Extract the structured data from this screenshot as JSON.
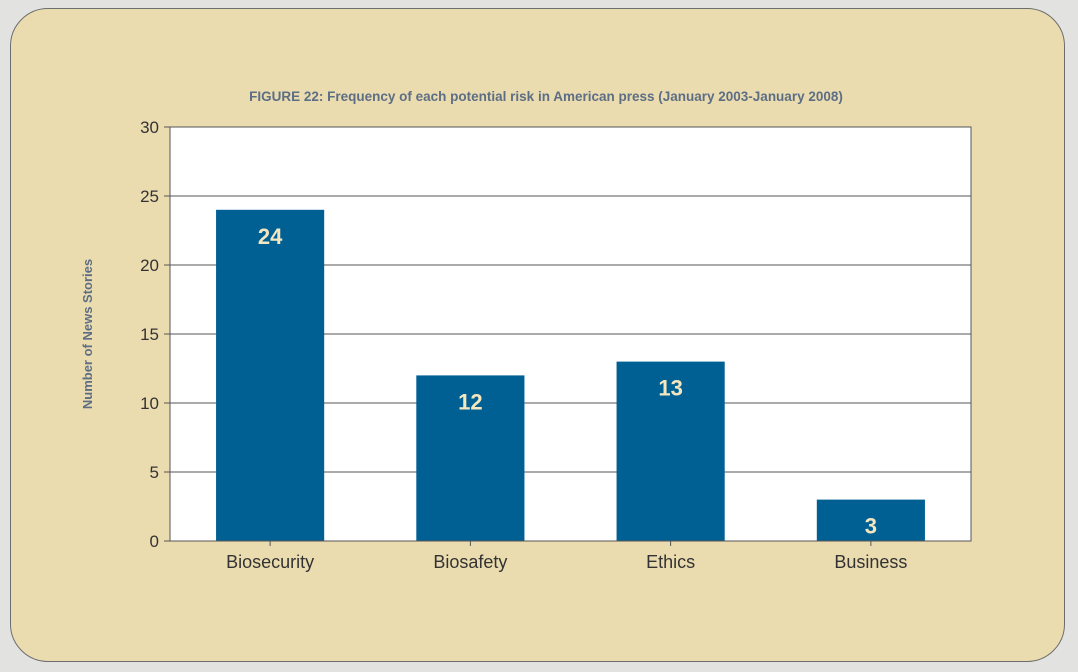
{
  "chart_data": {
    "type": "bar",
    "title": "FIGURE 22: Frequency of each potential risk in American press (January 2003-January 2008)",
    "xlabel": "",
    "ylabel": "Number of News Stories",
    "categories": [
      "Biosecurity",
      "Biosafety",
      "Ethics",
      "Business"
    ],
    "values": [
      24,
      12,
      13,
      3
    ],
    "data_labels": [
      "24",
      "12",
      "13",
      "3"
    ],
    "ylim": [
      0,
      30
    ],
    "yticks": [
      0,
      5,
      10,
      15,
      20,
      25,
      30
    ],
    "grid": true,
    "legend": "none",
    "colors": {
      "bar": "#006094",
      "panel": "#ebdcb0",
      "plot_background": "#ffffff",
      "title": "#5d6e84",
      "bar_label": "#f4e7c0"
    }
  }
}
